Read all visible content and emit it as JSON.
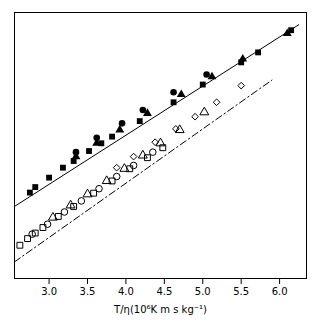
{
  "chart_data": {
    "type": "scatter",
    "xlabel": "T/η(10⁶K m s kg⁻¹)",
    "xlim": [
      2.55,
      6.35
    ],
    "ylim": [
      0.0,
      4.8
    ],
    "xticks": [
      {
        "value": 3.0,
        "label": "3.0"
      },
      3.5,
      {
        "value": 4.0,
        "label": "4.0"
      },
      4.5,
      {
        "value": 5.0,
        "label": "5.0"
      },
      5.5,
      {
        "value": 6.0,
        "label": "6.0"
      }
    ],
    "yticks": [],
    "tick_labels": "x",
    "grid": false,
    "series": [
      {
        "type": "scatter",
        "marker": "square",
        "color": "#000000",
        "x": [
          2.75,
          2.82,
          3.0,
          3.18,
          3.32,
          3.52,
          3.68,
          3.82,
          4.18,
          4.62,
          5.0,
          5.5,
          5.72,
          6.15
        ],
        "values": [
          1.55,
          1.65,
          1.82,
          2.0,
          2.12,
          2.3,
          2.44,
          2.56,
          2.84,
          3.18,
          3.5,
          3.9,
          4.08,
          4.48
        ]
      },
      {
        "type": "scatter",
        "marker": "triangle",
        "color": "#000000",
        "x": [
          3.35,
          3.62,
          3.92,
          4.28,
          4.72,
          5.12,
          5.52,
          6.1
        ],
        "values": [
          2.2,
          2.44,
          2.68,
          2.98,
          3.32,
          3.64,
          3.96,
          4.42
        ]
      },
      {
        "type": "scatter",
        "marker": "circle",
        "color": "#000000",
        "x": [
          3.35,
          3.62,
          3.95,
          4.22,
          4.62,
          5.05
        ],
        "values": [
          2.28,
          2.54,
          2.8,
          3.04,
          3.36,
          3.68
        ]
      },
      {
        "type": "scatter",
        "marker": "square_open",
        "color": "#000000",
        "x": [
          2.62,
          2.72,
          2.82,
          2.92,
          3.12,
          3.32,
          3.58,
          3.82,
          4.05,
          4.28,
          4.48
        ],
        "values": [
          0.6,
          0.72,
          0.82,
          0.92,
          1.12,
          1.3,
          1.54,
          1.76,
          1.98,
          2.18,
          2.36
        ]
      },
      {
        "type": "scatter",
        "marker": "circle_open",
        "color": "#000000",
        "x": [
          2.78,
          2.98,
          3.2,
          3.42,
          3.65,
          3.88,
          4.1,
          4.35
        ],
        "values": [
          0.8,
          0.98,
          1.2,
          1.4,
          1.62,
          1.84,
          2.04,
          2.28
        ]
      },
      {
        "type": "scatter",
        "marker": "triangle_open",
        "color": "#000000",
        "x": [
          3.05,
          3.28,
          3.5,
          3.75,
          3.98,
          4.22,
          4.45,
          4.7,
          5.02
        ],
        "values": [
          1.1,
          1.32,
          1.52,
          1.76,
          1.98,
          2.22,
          2.44,
          2.68,
          3.0
        ]
      },
      {
        "type": "scatter",
        "marker": "diamond_open",
        "color": "#000000",
        "x": [
          3.88,
          4.1,
          4.38,
          4.65,
          4.9,
          5.18,
          5.5
        ],
        "values": [
          2.0,
          2.2,
          2.46,
          2.7,
          2.92,
          3.18,
          3.48
        ]
      },
      {
        "type": "line",
        "line_style": "solid",
        "color": "#000000",
        "x": [
          2.55,
          6.25
        ],
        "values": [
          1.3,
          4.58
        ]
      },
      {
        "type": "line",
        "line_style": "dashdot",
        "color": "#000000",
        "x": [
          2.55,
          5.9
        ],
        "values": [
          0.3,
          3.58
        ]
      }
    ]
  }
}
